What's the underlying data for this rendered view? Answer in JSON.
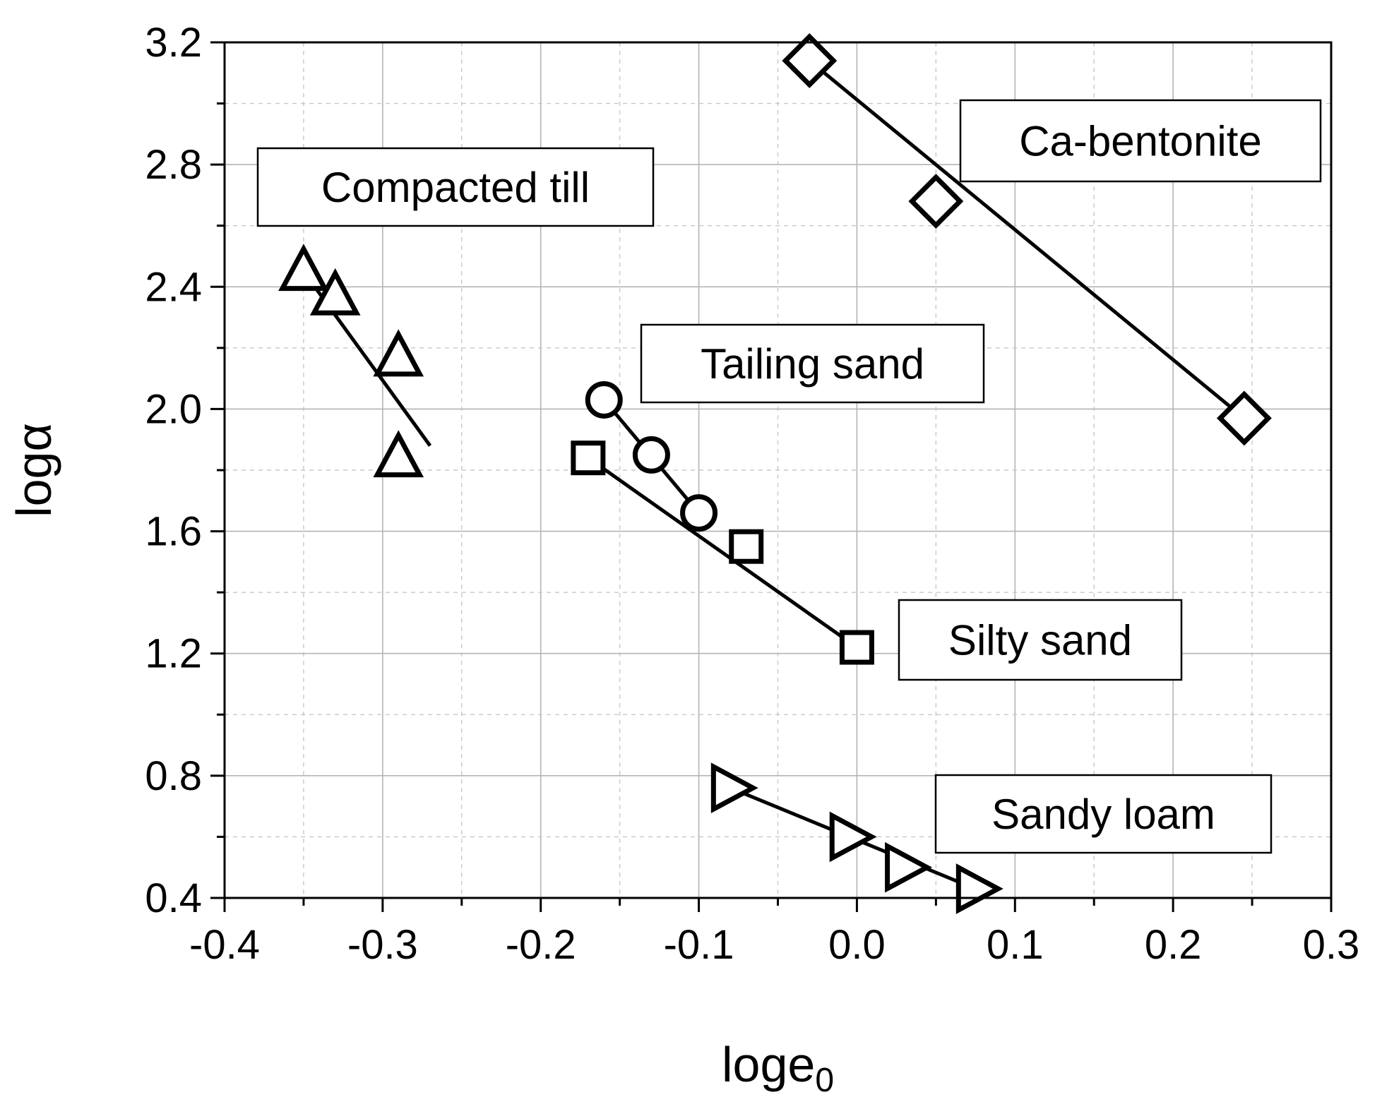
{
  "chart_data": {
    "type": "scatter",
    "xlabel": "loge",
    "xlabel_sub": "0",
    "ylabel": "logα",
    "xlim": [
      -0.4,
      0.3
    ],
    "ylim": [
      0.4,
      3.2
    ],
    "grid": true,
    "xticks": [
      -0.4,
      -0.3,
      -0.2,
      -0.1,
      0.0,
      0.1,
      0.2,
      0.3
    ],
    "xtick_labels": [
      "-0.4",
      "-0.3",
      "-0.2",
      "-0.1",
      "0.0",
      "0.1",
      "0.2",
      "0.3"
    ],
    "yticks": [
      0.4,
      0.8,
      1.2,
      1.6,
      2.0,
      2.4,
      2.8,
      3.2
    ],
    "ytick_labels": [
      "0.4",
      "0.8",
      "1.2",
      "1.6",
      "2.0",
      "2.4",
      "2.8",
      "3.2"
    ],
    "series": [
      {
        "name": "Compacted till",
        "marker": "triangle-up",
        "x": [
          -0.35,
          -0.33,
          -0.29,
          -0.29
        ],
        "y": [
          2.45,
          2.37,
          2.17,
          1.84
        ],
        "fit": {
          "x": [
            -0.35,
            -0.27
          ],
          "y": [
            2.45,
            1.88
          ]
        }
      },
      {
        "name": "Ca-bentonite",
        "marker": "diamond",
        "x": [
          -0.03,
          0.05,
          0.245
        ],
        "y": [
          3.14,
          2.68,
          1.97
        ],
        "fit": {
          "x": [
            -0.03,
            0.245
          ],
          "y": [
            3.14,
            1.97
          ]
        }
      },
      {
        "name": "Tailing sand",
        "marker": "circle",
        "x": [
          -0.16,
          -0.13,
          -0.1
        ],
        "y": [
          2.03,
          1.85,
          1.66
        ],
        "fit": {
          "x": [
            -0.16,
            -0.1
          ],
          "y": [
            2.03,
            1.66
          ]
        }
      },
      {
        "name": "Silty sand",
        "marker": "square",
        "x": [
          -0.17,
          -0.07,
          0.0
        ],
        "y": [
          1.84,
          1.55,
          1.22
        ],
        "fit": {
          "x": [
            -0.17,
            0.0
          ],
          "y": [
            1.84,
            1.22
          ]
        }
      },
      {
        "name": "Sandy loam",
        "marker": "triangle-right",
        "x": [
          -0.08,
          -0.005,
          0.03,
          0.075
        ],
        "y": [
          0.76,
          0.6,
          0.5,
          0.43
        ],
        "fit": {
          "x": [
            -0.08,
            0.075
          ],
          "y": [
            0.76,
            0.43
          ]
        }
      }
    ],
    "annotations": [
      {
        "text": "Compacted till",
        "series": "Compacted till"
      },
      {
        "text": "Ca-bentonite",
        "series": "Ca-bentonite"
      },
      {
        "text": "Tailing sand",
        "series": "Tailing sand"
      },
      {
        "text": "Silty sand",
        "series": "Silty sand"
      },
      {
        "text": "Sandy loam",
        "series": "Sandy loam"
      }
    ]
  }
}
